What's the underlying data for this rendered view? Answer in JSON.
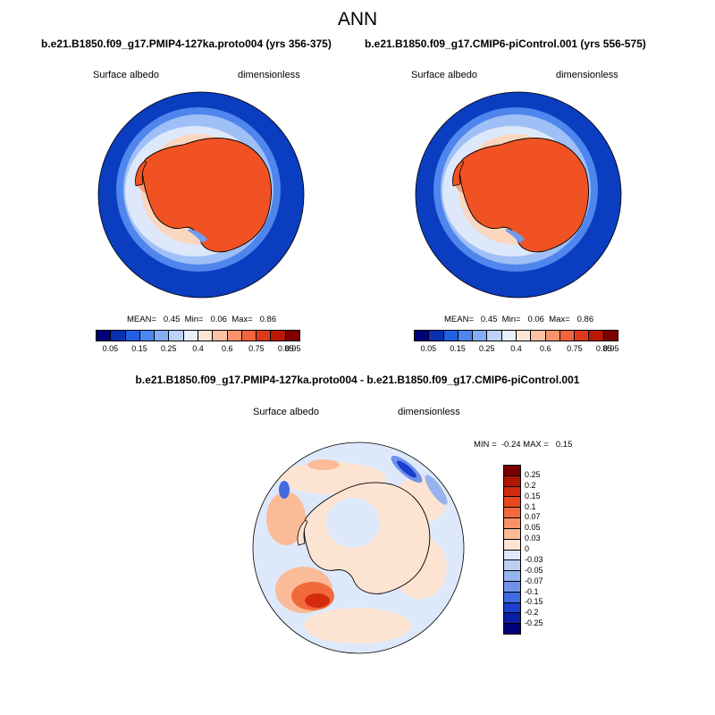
{
  "page": {
    "season": "ANN"
  },
  "panels": {
    "left": {
      "case_title": "b.e21.B1850.f09_g17.PMIP4-127ka.proto004 (yrs 356-375)",
      "variable": "Surface albedo",
      "units": "dimensionless",
      "stats": "MEAN=   0.45  Min=   0.06  Max=   0.86"
    },
    "right": {
      "case_title": "b.e21.B1850.f09_g17.CMIP6-piControl.001 (yrs 556-575)",
      "variable": "Surface albedo",
      "units": "dimensionless",
      "stats": "MEAN=   0.45  Min=   0.06  Max=   0.86"
    },
    "diff": {
      "case_title": "b.e21.B1850.f09_g17.PMIP4-127ka.proto004 - b.e21.B1850.f09_g17.CMIP6-piControl.001",
      "variable": "Surface albedo",
      "units": "dimensionless",
      "stats": "MIN =  -0.24 MAX =   0.15"
    }
  },
  "colorbars": {
    "abs_labels": [
      "0.05",
      "0.15",
      "0.25",
      "0.4",
      "0.6",
      "0.75",
      "0.85",
      "0.95"
    ],
    "abs_colors": [
      "#00007a",
      "#0a2fb0",
      "#2160e0",
      "#4d86ee",
      "#85adf5",
      "#bcd2f8",
      "#e6f0fc",
      "#fde6d6",
      "#fcc2a4",
      "#f9946d",
      "#f0643e",
      "#dd3a1c",
      "#b91806",
      "#7d0000"
    ],
    "diff_labels": [
      "0.25",
      "0.2",
      "0.15",
      "0.1",
      "0.07",
      "0.05",
      "0.03",
      "0",
      "-0.03",
      "-0.05",
      "-0.07",
      "-0.1",
      "-0.15",
      "-0.2",
      "-0.25"
    ],
    "diff_colors": [
      "#7a0000",
      "#b01700",
      "#d32a10",
      "#e8481f",
      "#f26a3c",
      "#f79166",
      "#fbbb98",
      "#fde4d2",
      "#dde9fb",
      "#bcd0f6",
      "#97b4f0",
      "#6f92eb",
      "#3f6ae2",
      "#1a3fcf",
      "#0a1fa3",
      "#00007a"
    ]
  }
}
